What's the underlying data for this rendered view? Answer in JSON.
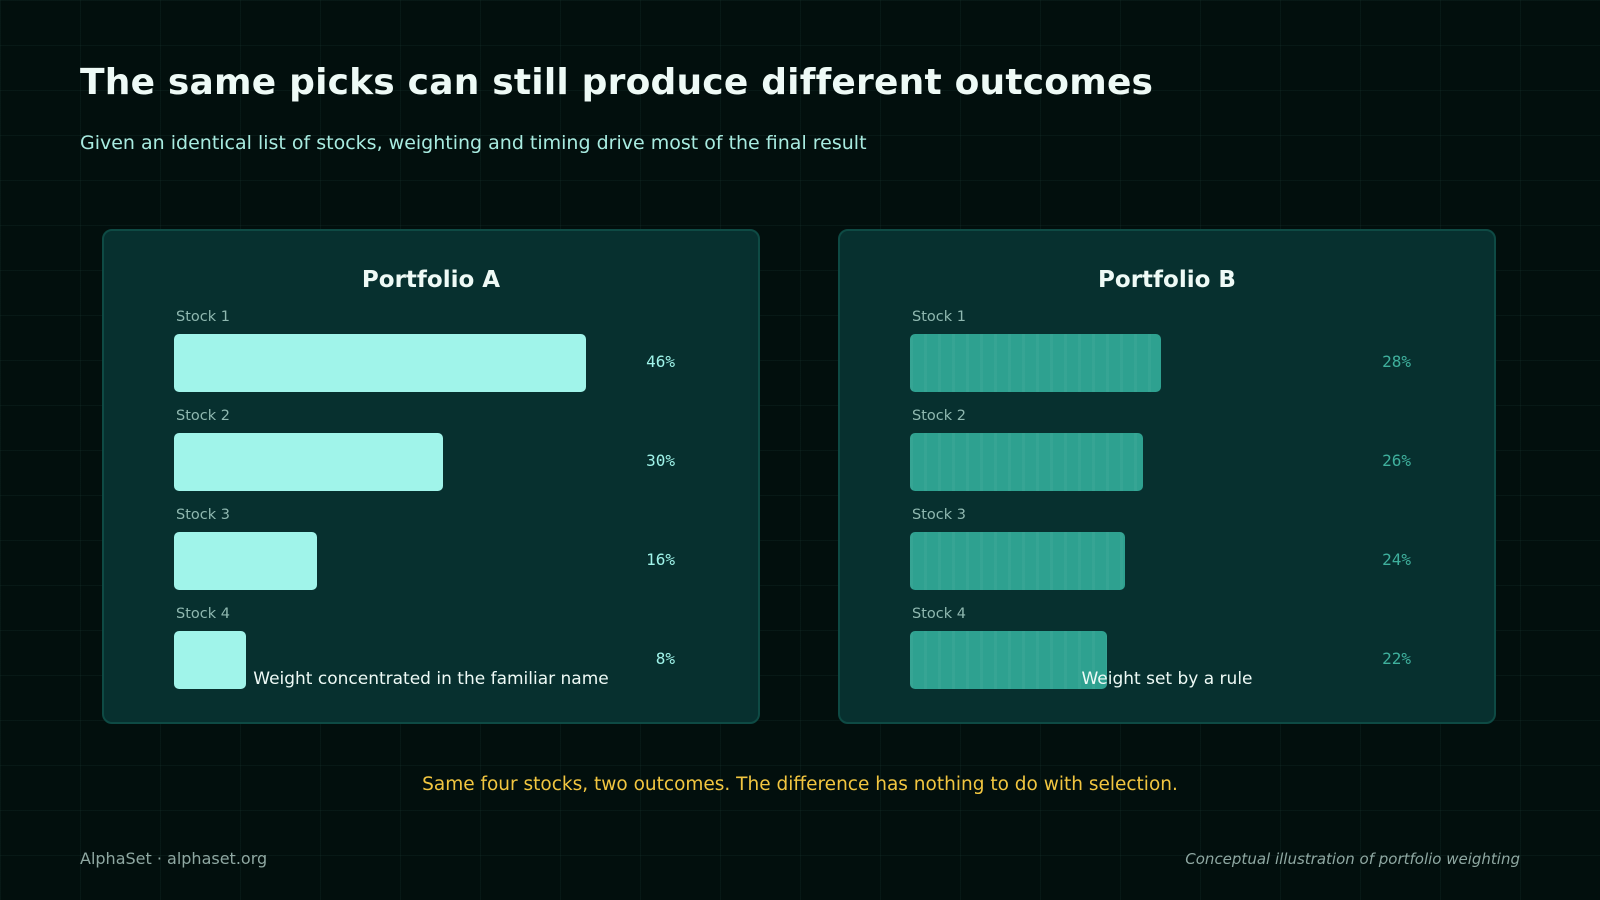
{
  "header": {
    "title": "The same picks can still produce different outcomes",
    "subtitle": "Given an identical list of stocks, weighting and timing drive most of the final result"
  },
  "chart_data": [
    {
      "type": "bar",
      "orientation": "horizontal",
      "title": "Portfolio A",
      "caption": "Weight concentrated in the familiar name",
      "categories": [
        "Stock 1",
        "Stock 2",
        "Stock 3",
        "Stock 4"
      ],
      "values": [
        46,
        30,
        16,
        8
      ],
      "value_labels": [
        "46%",
        "30%",
        "16%",
        "8%"
      ],
      "unit": "%",
      "xlim": [
        0,
        50
      ],
      "color": "#a0f4ea"
    },
    {
      "type": "bar",
      "orientation": "horizontal",
      "title": "Portfolio B",
      "caption": "Weight set by a rule",
      "categories": [
        "Stock 1",
        "Stock 2",
        "Stock 3",
        "Stock 4"
      ],
      "values": [
        28,
        26,
        24,
        22
      ],
      "value_labels": [
        "28%",
        "26%",
        "24%",
        "22%"
      ],
      "unit": "%",
      "xlim": [
        0,
        50
      ],
      "color": "#2ea190"
    }
  ],
  "footer": {
    "note": "Same four stocks, two outcomes. The difference has nothing to do with selection.",
    "brand": "AlphaSet · alphaset.org",
    "credit": "Conceptual illustration of portfolio weighting"
  },
  "colors": {
    "background": "#020f0d",
    "panel": "#07302f",
    "accent_yellow": "#f2c640"
  }
}
